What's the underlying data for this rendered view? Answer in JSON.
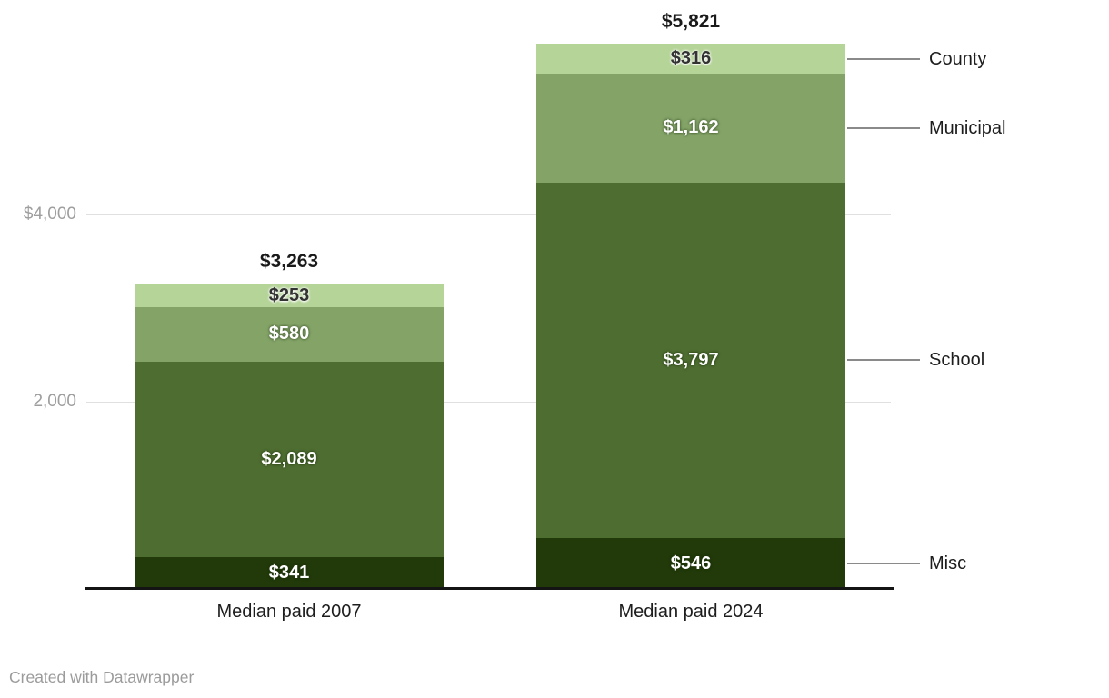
{
  "chart_data": {
    "type": "bar",
    "stacked": true,
    "title": "",
    "categories": [
      "Median paid 2007",
      "Median paid 2024"
    ],
    "series": [
      {
        "name": "County",
        "values": [
          253,
          316
        ],
        "labels": [
          "$253",
          "$316"
        ],
        "color": "#b5d498",
        "label_color": "#333333",
        "halo": "light"
      },
      {
        "name": "Municipal",
        "values": [
          580,
          1162
        ],
        "labels": [
          "$580",
          "$1,162"
        ],
        "color": "#83a367",
        "label_color": "#ffffff",
        "halo": "dark"
      },
      {
        "name": "School",
        "values": [
          2089,
          3797
        ],
        "labels": [
          "$2,089",
          "$3,797"
        ],
        "color": "#4e6d31",
        "label_color": "#ffffff",
        "halo": "dark"
      },
      {
        "name": "Misc",
        "values": [
          341,
          546
        ],
        "labels": [
          "$341",
          "$546"
        ],
        "color": "#223a0a",
        "label_color": "#ffffff",
        "halo": "dark"
      }
    ],
    "stack_order": "top-to-bottom",
    "totals": [
      3263,
      5821
    ],
    "total_labels": [
      "$3,263",
      "$5,821"
    ],
    "y_axis": {
      "ticks": [
        {
          "value": 4000,
          "label": "$4,000"
        },
        {
          "value": 2000,
          "label": "2,000"
        }
      ],
      "range": [
        0,
        6300
      ],
      "grid": true
    },
    "legend_position": "right-connected"
  },
  "footer": {
    "credit": "Created with Datawrapper"
  },
  "colors": {
    "background": "#ffffff",
    "grid": "#e0e0e0",
    "axis_line": "#141414",
    "tick_label": "#9e9e9e",
    "category_label": "#1d1d1d",
    "total_label": "#1a1a1a",
    "legend_label": "#1d1d1d",
    "connector": "#8a8a8a",
    "credit": "#9b9b9b"
  }
}
